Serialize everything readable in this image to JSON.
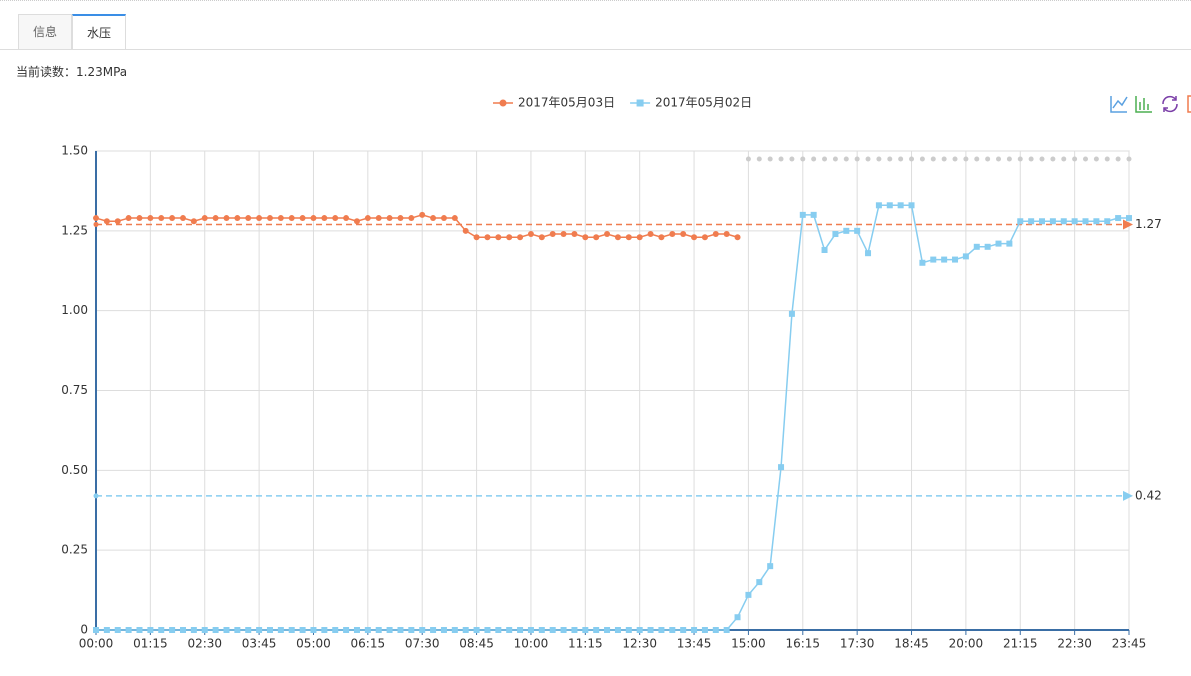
{
  "tabs": [
    "信息",
    "水压"
  ],
  "reading": "当前读数：1.23MPa",
  "chart_data": {
    "type": "line",
    "categories": [
      "00:00",
      null,
      null,
      null,
      null,
      "01:15",
      null,
      null,
      null,
      null,
      "02:30",
      null,
      null,
      null,
      null,
      "03:45",
      null,
      null,
      null,
      null,
      "05:00",
      null,
      null,
      null,
      null,
      "06:15",
      null,
      null,
      null,
      null,
      "07:30",
      null,
      null,
      null,
      null,
      "08:45",
      null,
      null,
      null,
      null,
      "10:00",
      null,
      null,
      null,
      null,
      "11:15",
      null,
      null,
      null,
      null,
      "12:30",
      null,
      null,
      null,
      null,
      "13:45",
      null,
      null,
      null,
      null,
      "15:00",
      null,
      null,
      null,
      null,
      "16:15",
      null,
      null,
      null,
      null,
      "17:30",
      null,
      null,
      null,
      null,
      "18:45",
      null,
      null,
      null,
      null,
      "20:00",
      null,
      null,
      null,
      null,
      "21:15",
      null,
      null,
      null,
      null,
      "22:30",
      null,
      null,
      null,
      null,
      "23:45"
    ],
    "series": [
      {
        "name": "2017年05月03日",
        "color": "#f07c4f",
        "marker": "circle",
        "values": [
          1.29,
          1.28,
          1.28,
          1.29,
          1.29,
          1.29,
          1.29,
          1.29,
          1.29,
          1.28,
          1.29,
          1.29,
          1.29,
          1.29,
          1.29,
          1.29,
          1.29,
          1.29,
          1.29,
          1.29,
          1.29,
          1.29,
          1.29,
          1.29,
          1.28,
          1.29,
          1.29,
          1.29,
          1.29,
          1.29,
          1.3,
          1.29,
          1.29,
          1.29,
          1.25,
          1.23,
          1.23,
          1.23,
          1.23,
          1.23,
          1.24,
          1.23,
          1.24,
          1.24,
          1.24,
          1.23,
          1.23,
          1.24,
          1.23,
          1.23,
          1.23,
          1.24,
          1.23,
          1.24,
          1.24,
          1.23,
          1.23,
          1.24,
          1.24,
          1.23,
          null,
          null,
          null,
          null,
          null,
          null,
          null,
          null,
          null,
          null,
          null,
          null,
          null,
          null,
          null,
          null,
          null,
          null,
          null,
          null,
          null,
          null,
          null,
          null,
          null,
          null,
          null,
          null,
          null,
          null,
          null,
          null,
          null,
          null,
          null,
          null
        ]
      },
      {
        "name": "2017年05月02日",
        "color": "#87cdf0",
        "marker": "square",
        "values": [
          0,
          0,
          0,
          0,
          0,
          0,
          0,
          0,
          0,
          0,
          0,
          0,
          0,
          0,
          0,
          0,
          0,
          0,
          0,
          0,
          0,
          0,
          0,
          0,
          0,
          0,
          0,
          0,
          0,
          0,
          0,
          0,
          0,
          0,
          0,
          0,
          0,
          0,
          0,
          0,
          0,
          0,
          0,
          0,
          0,
          0,
          0,
          0,
          0,
          0,
          0,
          0,
          0,
          0,
          0,
          0,
          0,
          0,
          0,
          0.04,
          0.11,
          0.15,
          0.2,
          0.51,
          0.99,
          1.3,
          1.3,
          1.19,
          1.24,
          1.25,
          1.25,
          1.18,
          1.33,
          1.33,
          1.33,
          1.33,
          1.15,
          1.16,
          1.16,
          1.16,
          1.17,
          1.2,
          1.2,
          1.21,
          1.21,
          1.28,
          1.28,
          1.28,
          1.28,
          1.28,
          1.28,
          1.28,
          1.28,
          1.28,
          1.29,
          1.29
        ]
      }
    ],
    "mark_lines": [
      {
        "series": 0,
        "value": 1.27
      },
      {
        "series": 1,
        "value": 0.42
      }
    ],
    "ylim": [
      0,
      1.5
    ],
    "yticks": [
      0,
      0.25,
      {
        "value": 0.5,
        "label": "0.50"
      },
      0.75,
      {
        "value": 1,
        "label": "1.00"
      },
      1.25,
      {
        "value": 1.5,
        "label": "1.50"
      }
    ],
    "grid": true
  }
}
